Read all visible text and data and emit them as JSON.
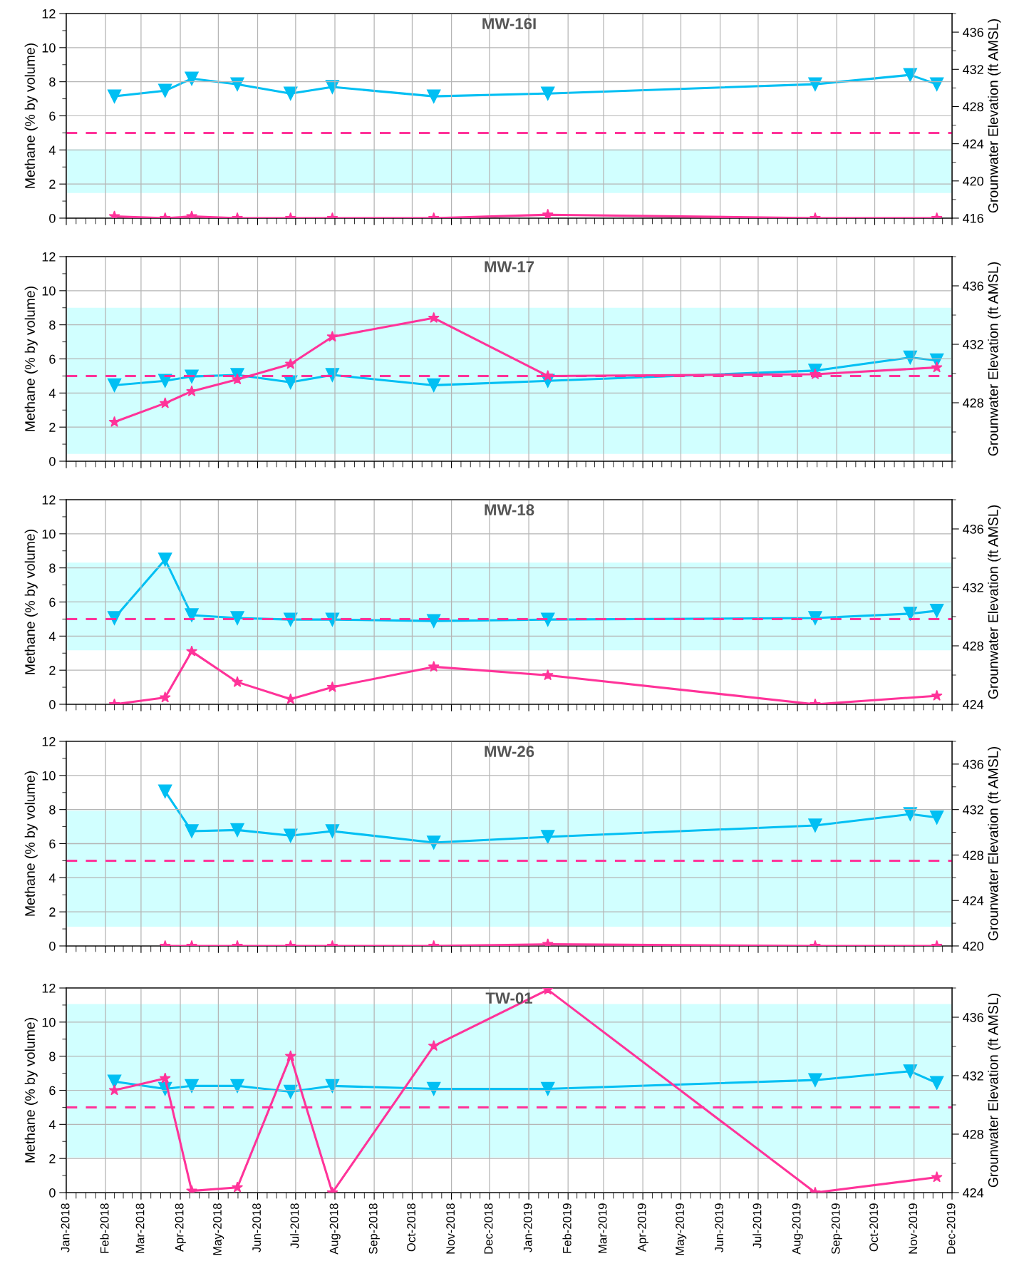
{
  "chart_data": [
    {
      "type": "line",
      "title": "MW-16I",
      "ylabel": "Methane (% by volume)",
      "y2label": "Grounwater Elevation (ft AMSL)",
      "xlim": [
        "2018-01-01",
        "2019-12-01"
      ],
      "xticks": [
        {
          "value": "2018-01",
          "label": null
        },
        {
          "value": "2018-02",
          "label": null
        },
        {
          "value": "2018-03",
          "label": null
        },
        {
          "value": "2018-04",
          "label": null
        },
        {
          "value": "2018-05",
          "label": null
        },
        {
          "value": "2018-06",
          "label": null
        },
        {
          "value": "2018-07",
          "label": null
        },
        {
          "value": "2018-08",
          "label": null
        },
        {
          "value": "2018-09",
          "label": null
        },
        {
          "value": "2018-10",
          "label": null
        },
        {
          "value": "2018-11",
          "label": null
        },
        {
          "value": "2018-12",
          "label": null
        },
        {
          "value": "2019-01",
          "label": null
        },
        {
          "value": "2019-02",
          "label": null
        },
        {
          "value": "2019-03",
          "label": null
        },
        {
          "value": "2019-04",
          "label": null
        },
        {
          "value": "2019-05",
          "label": null
        },
        {
          "value": "2019-06",
          "label": null
        },
        {
          "value": "2019-07",
          "label": null
        },
        {
          "value": "2019-08",
          "label": null
        },
        {
          "value": "2019-09",
          "label": null
        },
        {
          "value": "2019-10",
          "label": null
        },
        {
          "value": "2019-11",
          "label": null
        },
        {
          "value": "2019-12",
          "label": null
        }
      ],
      "ylim": [
        0,
        12
      ],
      "yticks": [
        0,
        2,
        4,
        6,
        8,
        10,
        12
      ],
      "y2lim": [
        416,
        438
      ],
      "y2ticks": [
        416,
        420,
        424,
        428,
        432,
        436
      ],
      "grid": true,
      "tick_labels": "y",
      "series": [
        {
          "color": "#00bff3",
          "marker": "triangle",
          "axis": "y2",
          "x": [
            "2018-02-08",
            "2018-03-20",
            "2018-04-10",
            "2018-05-16",
            "2018-06-27",
            "2018-07-30",
            "2018-10-18",
            "2019-01-16",
            "2019-08-15",
            "2019-10-29",
            "2019-11-19"
          ],
          "values": [
            429.1,
            429.7,
            431.0,
            430.4,
            429.4,
            430.1,
            429.1,
            429.4,
            430.4,
            431.4,
            430.4
          ]
        },
        {
          "color": "#ff3399",
          "marker": "star",
          "x": [
            "2018-02-08",
            "2018-03-20",
            "2018-04-10",
            "2018-05-16",
            "2018-06-27",
            "2018-07-30",
            "2018-10-18",
            "2019-01-16",
            "2019-08-15",
            "2019-11-19"
          ],
          "values": [
            0.1,
            0,
            0.1,
            0,
            0,
            0,
            0,
            0.2,
            0,
            0
          ]
        }
      ],
      "ref_lines": [
        {
          "axis": "y",
          "value": 5,
          "color": "#ff3399",
          "line_style": "dashed"
        }
      ],
      "bands": [
        {
          "axis": "y2",
          "from": 418.7,
          "to": 423.4,
          "color": "#ccffff"
        }
      ]
    },
    {
      "type": "line",
      "title": "MW-17",
      "ylabel": "Methane (% by volume)",
      "y2label": "Grounwater Elevation (ft AMSL)",
      "xlim": [
        "2018-01-01",
        "2019-12-01"
      ],
      "xticks": [
        {
          "value": "2018-01",
          "label": null
        },
        {
          "value": "2018-02",
          "label": null
        },
        {
          "value": "2018-03",
          "label": null
        },
        {
          "value": "2018-04",
          "label": null
        },
        {
          "value": "2018-05",
          "label": null
        },
        {
          "value": "2018-06",
          "label": null
        },
        {
          "value": "2018-07",
          "label": null
        },
        {
          "value": "2018-08",
          "label": null
        },
        {
          "value": "2018-09",
          "label": null
        },
        {
          "value": "2018-10",
          "label": null
        },
        {
          "value": "2018-11",
          "label": null
        },
        {
          "value": "2018-12",
          "label": null
        },
        {
          "value": "2019-01",
          "label": null
        },
        {
          "value": "2019-02",
          "label": null
        },
        {
          "value": "2019-03",
          "label": null
        },
        {
          "value": "2019-04",
          "label": null
        },
        {
          "value": "2019-05",
          "label": null
        },
        {
          "value": "2019-06",
          "label": null
        },
        {
          "value": "2019-07",
          "label": null
        },
        {
          "value": "2019-08",
          "label": null
        },
        {
          "value": "2019-09",
          "label": null
        },
        {
          "value": "2019-10",
          "label": null
        },
        {
          "value": "2019-11",
          "label": null
        },
        {
          "value": "2019-12",
          "label": null
        }
      ],
      "ylim": [
        0,
        12
      ],
      "yticks": [
        0,
        2,
        4,
        6,
        8,
        10,
        12
      ],
      "y2lim": [
        424,
        438
      ],
      "y2ticks": [
        428,
        432,
        436
      ],
      "grid": true,
      "tick_labels": "y",
      "series": [
        {
          "color": "#00bff3",
          "marker": "triangle",
          "axis": "y2",
          "x": [
            "2018-02-08",
            "2018-03-20",
            "2018-04-10",
            "2018-05-16",
            "2018-06-27",
            "2018-07-30",
            "2018-10-18",
            "2019-01-16",
            "2019-08-15",
            "2019-10-29",
            "2019-11-19"
          ],
          "values": [
            429.2,
            429.5,
            429.8,
            429.9,
            429.4,
            429.9,
            429.2,
            429.5,
            430.2,
            431.1,
            430.9
          ]
        },
        {
          "color": "#ff3399",
          "marker": "star",
          "x": [
            "2018-02-08",
            "2018-03-20",
            "2018-04-10",
            "2018-05-16",
            "2018-06-27",
            "2018-07-30",
            "2018-10-18",
            "2019-01-16",
            "2019-08-15",
            "2019-11-19"
          ],
          "values": [
            2.3,
            3.4,
            4.1,
            4.8,
            5.7,
            7.3,
            8.4,
            5.0,
            5.1,
            5.5
          ]
        }
      ],
      "ref_lines": [
        {
          "axis": "y",
          "value": 5,
          "color": "#ff3399",
          "line_style": "dashed"
        }
      ],
      "bands": [
        {
          "axis": "y2",
          "from": 424.5,
          "to": 434.5,
          "color": "#ccffff"
        }
      ]
    },
    {
      "type": "line",
      "title": "MW-18",
      "ylabel": "Methane (% by volume)",
      "y2label": "Grounwater Elevation (ft AMSL)",
      "xlim": [
        "2018-01-01",
        "2019-12-01"
      ],
      "xticks": [
        {
          "value": "2018-01",
          "label": null
        },
        {
          "value": "2018-02",
          "label": null
        },
        {
          "value": "2018-03",
          "label": null
        },
        {
          "value": "2018-04",
          "label": null
        },
        {
          "value": "2018-05",
          "label": null
        },
        {
          "value": "2018-06",
          "label": null
        },
        {
          "value": "2018-07",
          "label": null
        },
        {
          "value": "2018-08",
          "label": null
        },
        {
          "value": "2018-09",
          "label": null
        },
        {
          "value": "2018-10",
          "label": null
        },
        {
          "value": "2018-11",
          "label": null
        },
        {
          "value": "2018-12",
          "label": null
        },
        {
          "value": "2019-01",
          "label": null
        },
        {
          "value": "2019-02",
          "label": null
        },
        {
          "value": "2019-03",
          "label": null
        },
        {
          "value": "2019-04",
          "label": null
        },
        {
          "value": "2019-05",
          "label": null
        },
        {
          "value": "2019-06",
          "label": null
        },
        {
          "value": "2019-07",
          "label": null
        },
        {
          "value": "2019-08",
          "label": null
        },
        {
          "value": "2019-09",
          "label": null
        },
        {
          "value": "2019-10",
          "label": null
        },
        {
          "value": "2019-11",
          "label": null
        },
        {
          "value": "2019-12",
          "label": null
        }
      ],
      "ylim": [
        0,
        12
      ],
      "yticks": [
        0,
        2,
        4,
        6,
        8,
        10,
        12
      ],
      "y2lim": [
        424,
        438
      ],
      "y2ticks": [
        424,
        428,
        432,
        436
      ],
      "grid": true,
      "tick_labels": "y",
      "series": [
        {
          "color": "#00bff3",
          "marker": "triangle",
          "axis": "y2",
          "x": [
            "2018-02-08",
            "2018-03-20",
            "2018-04-10",
            "2018-05-16",
            "2018-06-27",
            "2018-07-30",
            "2018-10-18",
            "2019-01-16",
            "2019-08-15",
            "2019-10-29",
            "2019-11-19"
          ],
          "values": [
            429.9,
            433.9,
            430.1,
            429.9,
            429.8,
            429.8,
            429.7,
            429.8,
            429.9,
            430.2,
            430.4
          ]
        },
        {
          "color": "#ff3399",
          "marker": "star",
          "x": [
            "2018-02-08",
            "2018-03-20",
            "2018-04-10",
            "2018-05-16",
            "2018-06-27",
            "2018-07-30",
            "2018-10-18",
            "2019-01-16",
            "2019-08-15",
            "2019-11-19"
          ],
          "values": [
            0,
            0.4,
            3.1,
            1.3,
            0.3,
            1.0,
            2.2,
            1.7,
            0,
            0.5
          ]
        }
      ],
      "ref_lines": [
        {
          "axis": "y",
          "value": 5,
          "color": "#ff3399",
          "line_style": "dashed"
        }
      ],
      "bands": [
        {
          "axis": "y2",
          "from": 427.7,
          "to": 433.7,
          "color": "#ccffff"
        }
      ]
    },
    {
      "type": "line",
      "title": "MW-26",
      "ylabel": "Methane (% by volume)",
      "y2label": "Grounwater Elevation (ft AMSL)",
      "xlim": [
        "2018-01-01",
        "2019-12-01"
      ],
      "xticks": [
        {
          "value": "2018-01",
          "label": null
        },
        {
          "value": "2018-02",
          "label": null
        },
        {
          "value": "2018-03",
          "label": null
        },
        {
          "value": "2018-04",
          "label": null
        },
        {
          "value": "2018-05",
          "label": null
        },
        {
          "value": "2018-06",
          "label": null
        },
        {
          "value": "2018-07",
          "label": null
        },
        {
          "value": "2018-08",
          "label": null
        },
        {
          "value": "2018-09",
          "label": null
        },
        {
          "value": "2018-10",
          "label": null
        },
        {
          "value": "2018-11",
          "label": null
        },
        {
          "value": "2018-12",
          "label": null
        },
        {
          "value": "2019-01",
          "label": null
        },
        {
          "value": "2019-02",
          "label": null
        },
        {
          "value": "2019-03",
          "label": null
        },
        {
          "value": "2019-04",
          "label": null
        },
        {
          "value": "2019-05",
          "label": null
        },
        {
          "value": "2019-06",
          "label": null
        },
        {
          "value": "2019-07",
          "label": null
        },
        {
          "value": "2019-08",
          "label": null
        },
        {
          "value": "2019-09",
          "label": null
        },
        {
          "value": "2019-10",
          "label": null
        },
        {
          "value": "2019-11",
          "label": null
        },
        {
          "value": "2019-12",
          "label": null
        }
      ],
      "ylim": [
        0,
        12
      ],
      "yticks": [
        0,
        2,
        4,
        6,
        8,
        10,
        12
      ],
      "y2lim": [
        420,
        438
      ],
      "y2ticks": [
        420,
        424,
        428,
        432,
        436
      ],
      "grid": true,
      "tick_labels": "y",
      "series": [
        {
          "color": "#00bff3",
          "marker": "triangle",
          "axis": "y2",
          "x": [
            "2018-03-20",
            "2018-04-10",
            "2018-05-16",
            "2018-06-27",
            "2018-07-30",
            "2018-10-18",
            "2019-01-16",
            "2019-08-15",
            "2019-10-29",
            "2019-11-19"
          ],
          "values": [
            433.6,
            430.1,
            430.2,
            429.7,
            430.1,
            429.1,
            429.6,
            430.6,
            431.6,
            431.3
          ]
        },
        {
          "color": "#ff3399",
          "marker": "star",
          "x": [
            "2018-03-20",
            "2018-04-10",
            "2018-05-16",
            "2018-06-27",
            "2018-07-30",
            "2018-10-18",
            "2019-01-16",
            "2019-08-15",
            "2019-11-19"
          ],
          "values": [
            0,
            0,
            0,
            0,
            0,
            0,
            0.1,
            0,
            0
          ]
        }
      ],
      "ref_lines": [
        {
          "axis": "y",
          "value": 5,
          "color": "#ff3399",
          "line_style": "dashed"
        }
      ],
      "bands": [
        {
          "axis": "y2",
          "from": 421.7,
          "to": 431.9,
          "color": "#ccffff"
        }
      ]
    },
    {
      "type": "line",
      "title": "TW-01",
      "ylabel": "Methane (% by volume)",
      "y2label": "Grounwater Elevation (ft AMSL)",
      "xlim": [
        "2018-01-01",
        "2019-12-01"
      ],
      "xticks": [
        {
          "value": "2018-01",
          "label": "Jan-2018"
        },
        {
          "value": "2018-02",
          "label": "Feb-2018"
        },
        {
          "value": "2018-03",
          "label": "Mar-2018"
        },
        {
          "value": "2018-04",
          "label": "Apr-2018"
        },
        {
          "value": "2018-05",
          "label": "May-2018"
        },
        {
          "value": "2018-06",
          "label": "Jun-2018"
        },
        {
          "value": "2018-07",
          "label": "Jul-2018"
        },
        {
          "value": "2018-08",
          "label": "Aug-2018"
        },
        {
          "value": "2018-09",
          "label": "Sep-2018"
        },
        {
          "value": "2018-10",
          "label": "Oct-2018"
        },
        {
          "value": "2018-11",
          "label": "Nov-2018"
        },
        {
          "value": "2018-12",
          "label": "Dec-2018"
        },
        {
          "value": "2019-01",
          "label": "Jan-2019"
        },
        {
          "value": "2019-02",
          "label": "Feb-2019"
        },
        {
          "value": "2019-03",
          "label": "Mar-2019"
        },
        {
          "value": "2019-04",
          "label": "Apr-2019"
        },
        {
          "value": "2019-05",
          "label": "May-2019"
        },
        {
          "value": "2019-06",
          "label": "Jun-2019"
        },
        {
          "value": "2019-07",
          "label": "Jul-2019"
        },
        {
          "value": "2019-08",
          "label": "Aug-2019"
        },
        {
          "value": "2019-09",
          "label": "Sep-2019"
        },
        {
          "value": "2019-10",
          "label": "Oct-2019"
        },
        {
          "value": "2019-11",
          "label": "Nov-2019"
        },
        {
          "value": "2019-12",
          "label": "Dec-2019"
        }
      ],
      "ylim": [
        0,
        12
      ],
      "yticks": [
        0,
        2,
        4,
        6,
        8,
        10,
        12
      ],
      "y2lim": [
        424,
        438
      ],
      "y2ticks": [
        424,
        428,
        432,
        436
      ],
      "grid": true,
      "series": [
        {
          "color": "#00bff3",
          "marker": "triangle",
          "axis": "y2",
          "x": [
            "2018-02-08",
            "2018-03-20",
            "2018-04-10",
            "2018-05-16",
            "2018-06-27",
            "2018-07-30",
            "2018-10-18",
            "2019-01-16",
            "2019-08-15",
            "2019-10-29",
            "2019-11-19"
          ],
          "values": [
            431.6,
            431.1,
            431.3,
            431.3,
            430.9,
            431.3,
            431.1,
            431.1,
            431.7,
            432.3,
            431.5
          ]
        },
        {
          "color": "#ff3399",
          "marker": "star",
          "x": [
            "2018-02-08",
            "2018-03-20",
            "2018-04-10",
            "2018-05-16",
            "2018-06-27",
            "2018-07-30",
            "2018-10-18",
            "2019-01-16",
            "2019-08-15",
            "2019-11-19"
          ],
          "values": [
            6.0,
            6.7,
            0.1,
            0.3,
            8.0,
            0.0,
            8.6,
            11.9,
            0.0,
            0.9
          ]
        }
      ],
      "ref_lines": [
        {
          "axis": "y",
          "value": 5,
          "color": "#ff3399",
          "line_style": "dashed"
        }
      ],
      "bands": [
        {
          "axis": "y2",
          "from": 426.4,
          "to": 436.9,
          "color": "#ccffff"
        }
      ]
    }
  ]
}
